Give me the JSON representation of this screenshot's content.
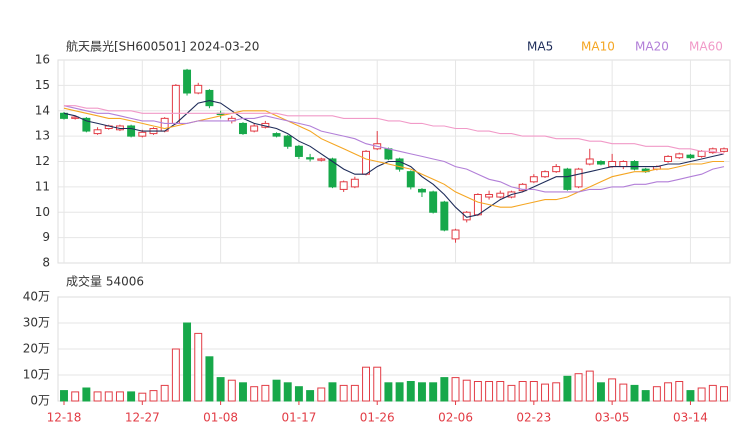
{
  "chart_data": [
    {
      "type": "candlestick",
      "title": "航天晨光[SH600501] 2024-03-20",
      "categories": [
        "12-18",
        null,
        null,
        null,
        null,
        null,
        null,
        "12-27",
        null,
        null,
        null,
        null,
        null,
        null,
        "01-08",
        null,
        null,
        null,
        null,
        null,
        null,
        "01-17",
        null,
        null,
        null,
        null,
        null,
        null,
        "01-26",
        null,
        null,
        null,
        null,
        null,
        null,
        "02-06",
        null,
        null,
        null,
        null,
        null,
        null,
        "02-23",
        null,
        null,
        null,
        null,
        null,
        null,
        "03-05",
        null,
        null,
        null,
        null,
        null,
        null,
        "03-14",
        null,
        null,
        null
      ],
      "open": [
        13.9,
        13.7,
        13.7,
        13.1,
        13.3,
        13.25,
        13.4,
        13.0,
        13.1,
        13.2,
        13.5,
        15.6,
        14.7,
        14.8,
        13.9,
        13.6,
        13.5,
        13.2,
        13.35,
        13.1,
        13.0,
        12.6,
        12.15,
        12.05,
        12.1,
        10.9,
        11.0,
        11.5,
        12.5,
        12.5,
        12.1,
        11.6,
        10.9,
        10.8,
        10.4,
        8.95,
        9.7,
        9.9,
        10.6,
        10.6,
        10.6,
        10.85,
        11.2,
        11.4,
        11.6,
        11.7,
        11.0,
        11.9,
        12.0,
        11.8,
        11.8,
        12.0,
        11.7,
        11.7,
        12.0,
        12.15,
        12.25,
        12.2,
        12.35,
        12.4
      ],
      "high": [
        13.95,
        13.8,
        13.75,
        13.35,
        13.45,
        13.45,
        13.45,
        13.25,
        13.35,
        13.75,
        15.05,
        15.65,
        15.1,
        14.85,
        14.0,
        13.8,
        13.55,
        13.5,
        13.6,
        13.15,
        13.05,
        12.65,
        12.3,
        12.15,
        12.15,
        11.25,
        11.4,
        12.45,
        13.2,
        12.55,
        12.15,
        11.65,
        10.95,
        10.85,
        10.45,
        9.35,
        10.05,
        10.75,
        10.85,
        10.85,
        10.85,
        11.15,
        11.5,
        11.65,
        11.9,
        11.75,
        11.75,
        12.5,
        12.05,
        12.3,
        12.05,
        12.05,
        11.75,
        11.85,
        12.25,
        12.35,
        12.3,
        12.45,
        12.55,
        12.55
      ],
      "low": [
        13.65,
        13.65,
        13.15,
        13.05,
        13.25,
        13.2,
        12.95,
        12.95,
        13.05,
        13.15,
        13.45,
        14.6,
        14.65,
        14.1,
        13.7,
        13.5,
        13.05,
        13.15,
        13.3,
        12.95,
        12.5,
        12.1,
        12.0,
        12.0,
        10.95,
        10.8,
        10.95,
        11.45,
        12.45,
        12.05,
        11.6,
        10.9,
        10.6,
        9.95,
        9.25,
        8.8,
        9.6,
        9.85,
        10.5,
        10.55,
        10.55,
        10.8,
        11.15,
        11.35,
        11.55,
        10.85,
        10.95,
        11.85,
        11.85,
        11.75,
        11.7,
        11.65,
        11.55,
        11.65,
        11.95,
        12.1,
        12.1,
        12.15,
        12.3,
        12.35
      ],
      "close": [
        13.7,
        13.75,
        13.2,
        13.25,
        13.4,
        13.4,
        13.0,
        13.15,
        13.3,
        13.7,
        15.0,
        14.7,
        15.0,
        14.2,
        13.85,
        13.7,
        13.1,
        13.4,
        13.5,
        13.0,
        12.6,
        12.2,
        12.1,
        12.1,
        11.0,
        11.2,
        11.3,
        12.4,
        12.7,
        12.1,
        11.7,
        11.0,
        10.8,
        10.0,
        9.3,
        9.3,
        10.0,
        10.7,
        10.7,
        10.75,
        10.8,
        11.1,
        11.4,
        11.6,
        11.8,
        10.9,
        11.7,
        12.1,
        11.9,
        12.0,
        12.0,
        11.7,
        11.6,
        11.8,
        12.2,
        12.3,
        12.15,
        12.4,
        12.5,
        12.5
      ],
      "up_color": "#e23c45",
      "down_color": "#17a84a",
      "series": [
        {
          "name": "MA5",
          "color": "#1f2d5a",
          "values": [
            13.9,
            13.8,
            13.6,
            13.5,
            13.4,
            13.3,
            13.3,
            13.2,
            13.2,
            13.2,
            13.5,
            13.9,
            14.3,
            14.4,
            14.3,
            14.0,
            13.7,
            13.5,
            13.4,
            13.3,
            13.1,
            12.8,
            12.6,
            12.3,
            12.0,
            11.7,
            11.5,
            11.5,
            11.8,
            12.0,
            12.0,
            11.8,
            11.4,
            11.1,
            10.7,
            10.2,
            9.8,
            9.9,
            10.2,
            10.5,
            10.7,
            10.8,
            11.0,
            11.2,
            11.4,
            11.4,
            11.5,
            11.6,
            11.7,
            11.8,
            11.8,
            11.8,
            11.8,
            11.8,
            11.9,
            11.9,
            12.0,
            12.1,
            12.2,
            12.3
          ]
        },
        {
          "name": "MA10",
          "color": "#f5a623",
          "values": [
            14.1,
            14.0,
            13.9,
            13.8,
            13.7,
            13.7,
            13.6,
            13.5,
            13.4,
            13.3,
            13.4,
            13.5,
            13.6,
            13.7,
            13.8,
            13.9,
            14.0,
            14.0,
            14.0,
            13.8,
            13.6,
            13.4,
            13.2,
            12.9,
            12.7,
            12.5,
            12.3,
            12.1,
            12.0,
            11.9,
            11.8,
            11.7,
            11.5,
            11.3,
            11.1,
            10.8,
            10.6,
            10.4,
            10.3,
            10.2,
            10.2,
            10.3,
            10.4,
            10.5,
            10.5,
            10.6,
            10.8,
            11.0,
            11.2,
            11.4,
            11.5,
            11.6,
            11.6,
            11.7,
            11.7,
            11.8,
            11.9,
            11.9,
            12.0,
            12.0
          ]
        },
        {
          "name": "MA20",
          "color": "#b27fd8",
          "values": [
            14.2,
            14.1,
            14.0,
            13.9,
            13.9,
            13.8,
            13.7,
            13.6,
            13.6,
            13.5,
            13.5,
            13.5,
            13.6,
            13.6,
            13.6,
            13.6,
            13.7,
            13.7,
            13.8,
            13.7,
            13.6,
            13.5,
            13.4,
            13.2,
            13.1,
            13.0,
            12.9,
            12.7,
            12.6,
            12.5,
            12.4,
            12.3,
            12.2,
            12.1,
            12.0,
            11.8,
            11.7,
            11.5,
            11.3,
            11.2,
            11.0,
            10.9,
            10.9,
            10.8,
            10.8,
            10.8,
            10.8,
            10.9,
            10.9,
            11.0,
            11.0,
            11.1,
            11.1,
            11.2,
            11.2,
            11.3,
            11.4,
            11.5,
            11.7,
            11.8
          ]
        },
        {
          "name": "MA60",
          "color": "#f19ac8",
          "values": [
            14.2,
            14.2,
            14.1,
            14.1,
            14.0,
            14.0,
            14.0,
            13.9,
            13.9,
            13.9,
            13.9,
            13.9,
            13.9,
            13.9,
            13.9,
            13.9,
            13.9,
            13.9,
            13.9,
            13.9,
            13.8,
            13.8,
            13.8,
            13.8,
            13.8,
            13.7,
            13.7,
            13.7,
            13.7,
            13.6,
            13.6,
            13.5,
            13.5,
            13.4,
            13.4,
            13.3,
            13.3,
            13.2,
            13.2,
            13.1,
            13.1,
            13.0,
            13.0,
            13.0,
            12.9,
            12.9,
            12.9,
            12.8,
            12.8,
            12.7,
            12.7,
            12.7,
            12.6,
            12.6,
            12.6,
            12.5,
            12.5,
            12.4,
            12.4,
            12.3
          ]
        }
      ],
      "ylim": [
        8,
        16
      ],
      "yticks": [
        8,
        9,
        10,
        11,
        12,
        13,
        14,
        15,
        16
      ],
      "grid": true
    },
    {
      "type": "bar",
      "title": "成交量 54006",
      "values": [
        4,
        3.5,
        5,
        3.5,
        3.5,
        3.5,
        3.5,
        3,
        4,
        6,
        20,
        30,
        26,
        17,
        9,
        8,
        7,
        5.5,
        6,
        8,
        7,
        5.5,
        4,
        5,
        7,
        6,
        6,
        13,
        13,
        7,
        7,
        7.5,
        7,
        7,
        9,
        9,
        8,
        7.5,
        7.5,
        7.5,
        6,
        7.5,
        7.5,
        6.5,
        7,
        9.5,
        10.5,
        11.5,
        7,
        8.5,
        6.5,
        6,
        4,
        5.5,
        7,
        7.5,
        4,
        5,
        6,
        5.5
      ],
      "ylim": [
        0,
        40
      ],
      "yticks": [
        {
          "value": 0,
          "label": "0万"
        },
        {
          "value": 10,
          "label": "10万"
        },
        {
          "value": 20,
          "label": "20万"
        },
        {
          "value": 30,
          "label": "30万"
        },
        {
          "value": 40,
          "label": "40万"
        }
      ],
      "grid": true
    }
  ]
}
